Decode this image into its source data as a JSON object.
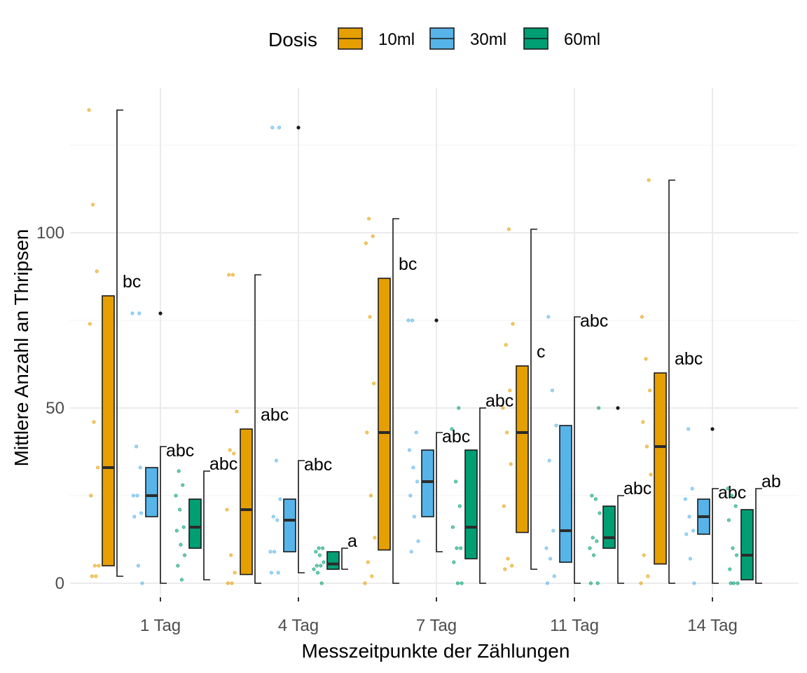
{
  "chart_data": {
    "type": "boxplot",
    "xlabel": "Messzeitpunkte der Zählungen",
    "ylabel": "Mittlere Anzahl an Thripsen",
    "categories": [
      "1 Tag",
      "4 Tag",
      "7 Tag",
      "11 Tag",
      "14 Tag"
    ],
    "yticks": [
      0,
      50,
      100
    ],
    "ylim": [
      -4,
      141
    ],
    "grid": true,
    "legend": {
      "title": "Dosis",
      "position": "top",
      "entries": [
        {
          "label": "10ml",
          "color": "#E69F00"
        },
        {
          "label": "30ml",
          "color": "#56B4E9"
        },
        {
          "label": "60ml",
          "color": "#009E73"
        }
      ]
    },
    "series": [
      {
        "name": "10ml",
        "color": "#E69F00",
        "boxes": [
          {
            "q1": 5,
            "median": 33,
            "q3": 82,
            "lower": 2,
            "upper": 135,
            "label": "bc",
            "outliers": [],
            "points": [
              135,
              108,
              89,
              74,
              46,
              33,
              25,
              5,
              5,
              2,
              2
            ]
          },
          {
            "q1": 2.5,
            "median": 21,
            "q3": 44,
            "lower": 0,
            "upper": 88,
            "label": "abc",
            "outliers": [],
            "points": [
              88,
              88,
              49,
              38,
              37,
              21,
              8,
              3,
              0,
              0
            ]
          },
          {
            "q1": 9.5,
            "median": 43,
            "q3": 87,
            "lower": 0,
            "upper": 104,
            "label": "bc",
            "outliers": [],
            "points": [
              104,
              99,
              97,
              76,
              57,
              43,
              25,
              13,
              6,
              2,
              0
            ]
          },
          {
            "q1": 14.5,
            "median": 43,
            "q3": 62,
            "lower": 4,
            "upper": 101,
            "label": "c",
            "outliers": [],
            "points": [
              101,
              74,
              68,
              55,
              50,
              43,
              34,
              22,
              7,
              5,
              4
            ]
          },
          {
            "q1": 5.5,
            "median": 39,
            "q3": 60,
            "lower": 0,
            "upper": 115,
            "label": "abc",
            "outliers": [],
            "points": [
              115,
              76,
              64,
              55,
              46,
              39,
              31,
              8,
              2,
              0
            ]
          }
        ]
      },
      {
        "name": "30ml",
        "color": "#56B4E9",
        "boxes": [
          {
            "q1": 19,
            "median": 25,
            "q3": 33,
            "lower": 0,
            "upper": 39,
            "label": "abc",
            "outliers": [
              77
            ],
            "points": [
              77,
              77,
              39,
              33,
              25,
              25,
              20,
              19,
              5,
              0
            ]
          },
          {
            "q1": 9,
            "median": 18,
            "q3": 24,
            "lower": 3,
            "upper": 35,
            "label": "abc",
            "outliers": [
              130
            ],
            "points": [
              130,
              130,
              35,
              24,
              19,
              18,
              9,
              9,
              3,
              3
            ]
          },
          {
            "q1": 19,
            "median": 29,
            "q3": 38,
            "lower": 9,
            "upper": 43,
            "label": "abc",
            "outliers": [
              75
            ],
            "points": [
              75,
              75,
              43,
              38,
              33,
              29,
              25,
              19,
              12,
              9
            ]
          },
          {
            "q1": 6,
            "median": 15,
            "q3": 45,
            "lower": 0,
            "upper": 76,
            "label": "abc",
            "outliers": [],
            "points": [
              76,
              55,
              45,
              35,
              15,
              10,
              7,
              2,
              0
            ]
          },
          {
            "q1": 14,
            "median": 19,
            "q3": 24,
            "lower": 0,
            "upper": 27,
            "label": "abc",
            "outliers": [
              44
            ],
            "points": [
              44,
              27,
              24,
              19,
              15,
              14,
              7,
              0
            ]
          }
        ]
      },
      {
        "name": "60ml",
        "color": "#009E73",
        "boxes": [
          {
            "q1": 10,
            "median": 16,
            "q3": 24,
            "lower": 1,
            "upper": 32,
            "label": "abc",
            "outliers": [],
            "points": [
              32,
              28,
              25,
              21,
              16,
              15,
              11,
              8,
              5,
              1
            ]
          },
          {
            "q1": 4,
            "median": 5.5,
            "q3": 9,
            "lower": 4,
            "upper": 10,
            "label": "a",
            "outliers": [],
            "points": [
              10,
              10,
              9,
              8,
              6,
              5,
              5,
              4,
              3,
              0
            ]
          },
          {
            "q1": 7,
            "median": 16,
            "q3": 38,
            "lower": 0,
            "upper": 50,
            "label": "abc",
            "outliers": [],
            "points": [
              50,
              44,
              29,
              22,
              16,
              10,
              10,
              6,
              0,
              0
            ]
          },
          {
            "q1": 10,
            "median": 13,
            "q3": 22,
            "lower": 0,
            "upper": 25,
            "label": "abc",
            "outliers": [
              50
            ],
            "points": [
              50,
              25,
              24,
              20,
              13,
              12,
              10,
              8,
              0,
              0
            ]
          },
          {
            "q1": 1,
            "median": 8,
            "q3": 21,
            "lower": 0,
            "upper": 27,
            "label": "ab",
            "outliers": [],
            "points": [
              27,
              25,
              22,
              18,
              10,
              8,
              4,
              0,
              0,
              0
            ]
          }
        ]
      }
    ]
  }
}
